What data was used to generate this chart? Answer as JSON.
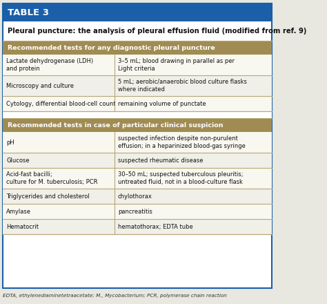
{
  "title_banner": "TABLE 3",
  "title_banner_bg": "#1a5fa8",
  "title_banner_color": "#ffffff",
  "main_title": "Pleural puncture: the analysis of pleural effusion fluid (modified from ref. 9)",
  "header1_text": "Recommended tests for any diagnostic pleural puncture",
  "header2_text": "Recommended tests in case of particular clinical suspicion",
  "header_bg": "#a08c52",
  "header_text_color": "#ffffff",
  "section1_rows": [
    [
      "Lactate dehydrogenase (LDH)\nand protein",
      "3–5 mL; blood drawing in parallel as per\nLight criteria"
    ],
    [
      "Microscopy and culture",
      "5 mL; aerobic/anaerobic blood culture flasks\nwhere indicated"
    ],
    [
      "Cytology, differential blood-cell count",
      "remaining volume of punctate"
    ]
  ],
  "section2_rows": [
    [
      "pH",
      "suspected infection despite non-purulent\neffusion; in a heparinized blood-gas syringe"
    ],
    [
      "Glucose",
      "suspected rheumatic disease"
    ],
    [
      "Acid-fast bacilli;\nculture for M. tuberculosis; PCR",
      "30–50 mL; suspected tuberculous pleuritis;\nuntreated fluid, not in a blood-culture flask"
    ],
    [
      "Triglycerides and cholesterol",
      "chylothorax"
    ],
    [
      "Amylase",
      "pancreatitis"
    ],
    [
      "Hematocrit",
      "hematothorax; EDTA tube"
    ]
  ],
  "footnote": "EDTA, ethylenediaminetetraacetate; M., Mycobacterium; PCR, polymerase chain reaction",
  "outer_border_color": "#1a5fa8",
  "divider_color": "#b8a878",
  "row_bg_light": "#f0efe8",
  "row_bg_white": "#f8f7f0",
  "bg_color": "#e8e8e0",
  "table_bg": "#ffffff",
  "col_split": 0.415
}
